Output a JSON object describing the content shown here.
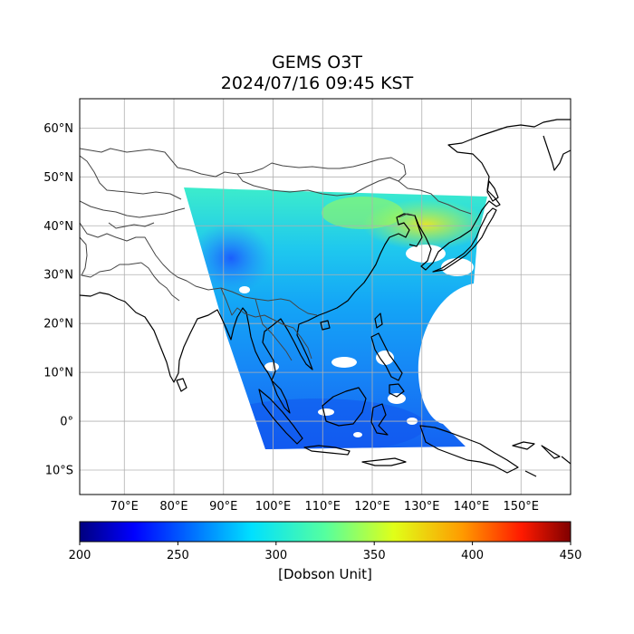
{
  "title": "GEMS O3T",
  "subtitle": "2024/07/16 09:45 KST",
  "map": {
    "lon_range": [
      61,
      160
    ],
    "lat_range": [
      -15,
      66
    ],
    "lat_ticks": [
      "60°N",
      "50°N",
      "40°N",
      "30°N",
      "20°N",
      "10°N",
      "0°",
      "10°S"
    ],
    "lon_ticks": [
      "70°E",
      "80°E",
      "90°E",
      "100°E",
      "110°E",
      "120°E",
      "130°E",
      "140°E",
      "150°E"
    ]
  },
  "colorbar": {
    "ticks": [
      "200",
      "250",
      "300",
      "350",
      "400",
      "450"
    ],
    "label": "[Dobson Unit]",
    "colormap": "jet"
  },
  "colors": {
    "coast": "#000000",
    "border": "#444444",
    "grid": "#b0b0b0"
  }
}
